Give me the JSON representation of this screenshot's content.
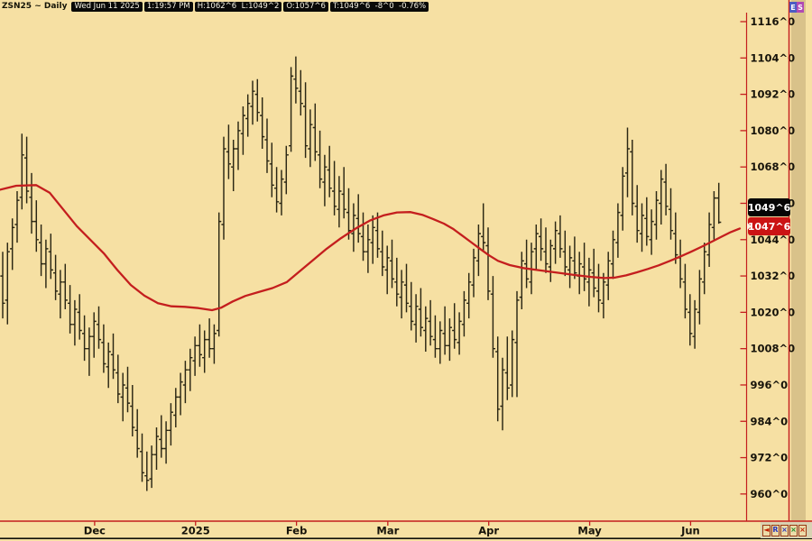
{
  "header": {
    "symbol_title": "ZSN25 ~ Daily",
    "date": "Wed Jun 11 2025",
    "time": "1:19:57 PM",
    "high_low": "H:1062^6  L:1049^2",
    "open": "O:1057^6",
    "last_change": "T:1049^6  -8^0  -0.76%"
  },
  "price_markers": {
    "last": "1049^6",
    "ma": "1047^6"
  },
  "side_badges": {
    "expand": "E",
    "settings": "S"
  },
  "bottom_buttons": [
    {
      "name": "scroll-left-button",
      "glyph": "◄",
      "color": "#c22000"
    },
    {
      "name": "restore-view-button",
      "glyph": "R",
      "color": "#2a35b8"
    },
    {
      "name": "close-x-blue-button",
      "glyph": "×",
      "color": "#2a35b8"
    },
    {
      "name": "close-x-green-button",
      "glyph": "×",
      "color": "#1a8a28"
    },
    {
      "name": "close-x-red-button",
      "glyph": "×",
      "color": "#c22000"
    }
  ],
  "colors": {
    "background": "#f6e0a3",
    "bar": "#2b2714",
    "ma_line": "#c41e1e",
    "axis_red": "#c41e1e",
    "scroll_strip": "#d9c28a",
    "last_box_bg": "#050505",
    "ma_box_bg": "#cb1414"
  },
  "chart_data": {
    "type": "bar",
    "subtype": "ohlc-daily",
    "title": "ZSN25 ~ Daily",
    "legend_position": "none",
    "grid": false,
    "y_axis": {
      "ylim": [
        950,
        1119
      ],
      "tick_format": "eighths",
      "labels": [
        {
          "v": 1116,
          "t": "1116^0"
        },
        {
          "v": 1104,
          "t": "1104^0"
        },
        {
          "v": 1092,
          "t": "1092^0"
        },
        {
          "v": 1080,
          "t": "1080^0"
        },
        {
          "v": 1068,
          "t": "1068^0"
        },
        {
          "v": 1056,
          "t": "1056^0"
        },
        {
          "v": 1044,
          "t": "1044^0"
        },
        {
          "v": 1032,
          "t": "1032^0"
        },
        {
          "v": 1020,
          "t": "1020^0"
        },
        {
          "v": 1008,
          "t": "1008^0"
        },
        {
          "v": 996,
          "t": "996^0"
        },
        {
          "v": 984,
          "t": "984^0"
        },
        {
          "v": 972,
          "t": "972^0"
        },
        {
          "v": 960,
          "t": "960^0"
        }
      ]
    },
    "x_axis": {
      "month_labels": [
        {
          "t": "Dec",
          "i": 18
        },
        {
          "t": "2025",
          "i": 39
        },
        {
          "t": "Feb",
          "i": 60
        },
        {
          "t": "Mar",
          "i": 79
        },
        {
          "t": "Apr",
          "i": 100
        },
        {
          "t": "May",
          "i": 121
        },
        {
          "t": "Jun",
          "i": 142
        }
      ]
    },
    "last_values": {
      "last_price": "1049^6",
      "ma_value": "1047^6"
    },
    "ma": {
      "name": "moving-average",
      "points": [
        [
          0,
          1060.5
        ],
        [
          18,
          1061.8
        ],
        [
          40,
          1062
        ],
        [
          55,
          1059.5
        ],
        [
          70,
          1054
        ],
        [
          85,
          1048.5
        ],
        [
          100,
          1044
        ],
        [
          115,
          1039.5
        ],
        [
          130,
          1034
        ],
        [
          145,
          1029
        ],
        [
          160,
          1025.5
        ],
        [
          175,
          1023
        ],
        [
          190,
          1022
        ],
        [
          205,
          1021.8
        ],
        [
          220,
          1021.4
        ],
        [
          235,
          1020.7
        ],
        [
          245,
          1021.5
        ],
        [
          258,
          1023.6
        ],
        [
          272,
          1025.4
        ],
        [
          288,
          1026.8
        ],
        [
          302,
          1028
        ],
        [
          318,
          1030
        ],
        [
          332,
          1033.5
        ],
        [
          348,
          1037.5
        ],
        [
          362,
          1041
        ],
        [
          378,
          1044.5
        ],
        [
          395,
          1047.8
        ],
        [
          410,
          1050.3
        ],
        [
          425,
          1052
        ],
        [
          440,
          1053
        ],
        [
          455,
          1053.1
        ],
        [
          468,
          1052.2
        ],
        [
          480,
          1050.8
        ],
        [
          492,
          1049.3
        ],
        [
          502,
          1047.6
        ],
        [
          512,
          1045.4
        ],
        [
          522,
          1043.2
        ],
        [
          532,
          1041
        ],
        [
          542,
          1038.8
        ],
        [
          552,
          1037
        ],
        [
          565,
          1035.6
        ],
        [
          580,
          1034.6
        ],
        [
          595,
          1034
        ],
        [
          610,
          1033.4
        ],
        [
          625,
          1032.8
        ],
        [
          640,
          1032.2
        ],
        [
          655,
          1031.7
        ],
        [
          670,
          1031.3
        ],
        [
          682,
          1031.5
        ],
        [
          694,
          1032.2
        ],
        [
          706,
          1033.2
        ],
        [
          718,
          1034.3
        ],
        [
          730,
          1035.5
        ],
        [
          742,
          1036.9
        ],
        [
          754,
          1038.4
        ],
        [
          766,
          1040
        ],
        [
          778,
          1041.7
        ],
        [
          790,
          1043.5
        ],
        [
          800,
          1045
        ],
        [
          810,
          1046.5
        ],
        [
          820,
          1047.7
        ]
      ]
    },
    "bars": [
      [
        1032,
        1040,
        1018,
        1023
      ],
      [
        1024,
        1043,
        1016,
        1040
      ],
      [
        1041,
        1051,
        1034,
        1048
      ],
      [
        1049,
        1060,
        1043,
        1057
      ],
      [
        1058,
        1079,
        1054,
        1072
      ],
      [
        1071,
        1078,
        1056,
        1060
      ],
      [
        1058,
        1066,
        1046,
        1050
      ],
      [
        1050,
        1057,
        1040,
        1044
      ],
      [
        1043,
        1049,
        1032,
        1036
      ],
      [
        1036,
        1044,
        1028,
        1041
      ],
      [
        1040,
        1046,
        1031,
        1034
      ],
      [
        1033,
        1039,
        1024,
        1027
      ],
      [
        1026,
        1034,
        1018,
        1030
      ],
      [
        1030,
        1036,
        1021,
        1024
      ],
      [
        1023,
        1029,
        1013,
        1016
      ],
      [
        1016,
        1024,
        1009,
        1021
      ],
      [
        1020,
        1026,
        1011,
        1014
      ],
      [
        1013,
        1019,
        1004,
        1008
      ],
      [
        1008,
        1015,
        999,
        1012
      ],
      [
        1012,
        1020,
        1005,
        1017
      ],
      [
        1016,
        1022,
        1008,
        1011
      ],
      [
        1010,
        1016,
        1000,
        1003
      ],
      [
        1002,
        1010,
        995,
        1007
      ],
      [
        1006,
        1013,
        998,
        1001
      ],
      [
        1000,
        1006,
        990,
        993
      ],
      [
        992,
        1000,
        984,
        996
      ],
      [
        995,
        1002,
        987,
        990
      ],
      [
        989,
        996,
        979,
        982
      ],
      [
        981,
        988,
        972,
        975
      ],
      [
        974,
        980,
        964,
        967
      ],
      [
        966,
        974,
        961,
        964.5
      ],
      [
        965,
        976,
        962,
        973
      ],
      [
        973,
        982,
        968,
        979
      ],
      [
        978,
        986,
        972,
        975
      ],
      [
        975,
        984,
        970,
        981
      ],
      [
        981,
        990,
        976,
        987
      ],
      [
        986,
        995,
        982,
        992
      ],
      [
        992,
        1000,
        986,
        997
      ],
      [
        996,
        1004,
        990,
        1001
      ],
      [
        1001,
        1008,
        994,
        1005
      ],
      [
        1004,
        1012,
        999,
        1009
      ],
      [
        1009,
        1016,
        1002,
        1006
      ],
      [
        1005,
        1014,
        1000,
        1011
      ],
      [
        1011,
        1018,
        1005,
        1008
      ],
      [
        1008,
        1016,
        1003,
        1013
      ],
      [
        1014,
        1053,
        1012,
        1050
      ],
      [
        1049,
        1078,
        1044,
        1074
      ],
      [
        1073,
        1082,
        1064,
        1069
      ],
      [
        1068,
        1077,
        1060,
        1074
      ],
      [
        1074,
        1083,
        1067,
        1080
      ],
      [
        1079,
        1088,
        1072,
        1085
      ],
      [
        1084,
        1092,
        1078,
        1089
      ],
      [
        1088,
        1096.5,
        1082,
        1093
      ],
      [
        1092,
        1097,
        1083,
        1086
      ],
      [
        1085,
        1091,
        1074,
        1078
      ],
      [
        1077,
        1084,
        1066,
        1070
      ],
      [
        1069,
        1076,
        1058,
        1062
      ],
      [
        1061,
        1068,
        1053,
        1056.5
      ],
      [
        1056,
        1067,
        1052,
        1064
      ],
      [
        1063,
        1075,
        1059,
        1072
      ],
      [
        1075,
        1101,
        1073,
        1098
      ],
      [
        1097,
        1104.5,
        1089,
        1094
      ],
      [
        1093,
        1100,
        1085,
        1089
      ],
      [
        1088,
        1096,
        1071,
        1075
      ],
      [
        1074,
        1087,
        1068,
        1082
      ],
      [
        1081,
        1089,
        1070,
        1073
      ],
      [
        1072,
        1080,
        1061,
        1064
      ],
      [
        1063,
        1072,
        1055,
        1068
      ],
      [
        1067,
        1075,
        1058,
        1061
      ],
      [
        1060,
        1070,
        1052,
        1055
      ],
      [
        1054,
        1065,
        1048,
        1060
      ],
      [
        1059,
        1068,
        1051,
        1054
      ],
      [
        1053,
        1061,
        1044,
        1047
      ],
      [
        1046,
        1056,
        1040,
        1052
      ],
      [
        1051,
        1059,
        1043,
        1046
      ],
      [
        1045,
        1053,
        1037,
        1040
      ],
      [
        1040,
        1049,
        1033,
        1044
      ],
      [
        1043,
        1052,
        1036,
        1048
      ],
      [
        1047,
        1053,
        1038,
        1041
      ],
      [
        1040,
        1047,
        1032,
        1035
      ],
      [
        1034,
        1042,
        1026,
        1038
      ],
      [
        1037,
        1044,
        1028,
        1031
      ],
      [
        1030,
        1038,
        1022,
        1026
      ],
      [
        1025,
        1034,
        1018,
        1030
      ],
      [
        1029,
        1036,
        1020,
        1023
      ],
      [
        1022,
        1030,
        1014,
        1017
      ],
      [
        1016,
        1026,
        1010,
        1022
      ],
      [
        1021,
        1028,
        1012,
        1015
      ],
      [
        1014,
        1022,
        1007,
        1018
      ],
      [
        1017,
        1024,
        1009,
        1012
      ],
      [
        1011,
        1019,
        1005,
        1008
      ],
      [
        1008,
        1017,
        1003,
        1014
      ],
      [
        1013,
        1022,
        1006,
        1009
      ],
      [
        1009,
        1018,
        1004,
        1015
      ],
      [
        1014,
        1023,
        1008,
        1011
      ],
      [
        1010,
        1020,
        1006,
        1017
      ],
      [
        1016,
        1027,
        1012,
        1024
      ],
      [
        1023,
        1033,
        1018,
        1030
      ],
      [
        1029,
        1041,
        1025,
        1038
      ],
      [
        1037,
        1049,
        1032,
        1046
      ],
      [
        1045,
        1056,
        1040,
        1043
      ],
      [
        1042,
        1048,
        1024,
        1027
      ],
      [
        1026,
        1032,
        1005,
        1008
      ],
      [
        1007,
        1012,
        984,
        988
      ],
      [
        989,
        1005,
        981,
        1001
      ],
      [
        1000,
        1012,
        991,
        995
      ],
      [
        996,
        1014,
        992,
        1011
      ],
      [
        1010,
        1027,
        992,
        1024
      ],
      [
        1025,
        1040,
        1021,
        1037
      ],
      [
        1036,
        1044,
        1028,
        1031
      ],
      [
        1030,
        1043,
        1026,
        1040
      ],
      [
        1041,
        1049,
        1034,
        1046
      ],
      [
        1045,
        1051,
        1037,
        1041
      ],
      [
        1040,
        1048,
        1033,
        1036
      ],
      [
        1035,
        1044,
        1030,
        1042
      ],
      [
        1041,
        1050,
        1036,
        1047
      ],
      [
        1046,
        1052,
        1038,
        1041
      ],
      [
        1040,
        1047,
        1032,
        1035
      ],
      [
        1034,
        1042,
        1028,
        1038
      ],
      [
        1037,
        1045,
        1031,
        1033
      ],
      [
        1032,
        1040,
        1026,
        1036
      ],
      [
        1035,
        1043,
        1027,
        1031
      ],
      [
        1030,
        1038,
        1022,
        1034
      ],
      [
        1033,
        1041,
        1025,
        1028
      ],
      [
        1027,
        1036,
        1020,
        1024
      ],
      [
        1023,
        1033,
        1018,
        1030
      ],
      [
        1029,
        1040,
        1024,
        1037
      ],
      [
        1036,
        1047,
        1031,
        1044
      ],
      [
        1043,
        1056,
        1038,
        1053
      ],
      [
        1052,
        1068,
        1047,
        1065
      ],
      [
        1066,
        1081,
        1058,
        1074
      ],
      [
        1073,
        1077,
        1052,
        1056
      ],
      [
        1055,
        1062,
        1043,
        1047
      ],
      [
        1046,
        1056,
        1040,
        1052
      ],
      [
        1051,
        1058,
        1042,
        1045
      ],
      [
        1044,
        1054,
        1039,
        1050
      ],
      [
        1049,
        1060,
        1044,
        1057
      ],
      [
        1056,
        1067,
        1049,
        1064
      ],
      [
        1063,
        1069,
        1052,
        1055
      ],
      [
        1054,
        1061,
        1044,
        1047
      ],
      [
        1046,
        1053,
        1036,
        1039
      ],
      [
        1038,
        1044,
        1028,
        1031
      ],
      [
        1030,
        1036,
        1018,
        1021
      ],
      [
        1020,
        1026,
        1009,
        1013
      ],
      [
        1012,
        1024,
        1008,
        1021
      ],
      [
        1020,
        1034,
        1016,
        1031
      ],
      [
        1030,
        1043,
        1026,
        1040
      ],
      [
        1039,
        1053,
        1035,
        1049
      ],
      [
        1048,
        1060,
        1044,
        1057.75
      ],
      [
        1057.75,
        1062.75,
        1049.25,
        1049.75
      ]
    ]
  }
}
